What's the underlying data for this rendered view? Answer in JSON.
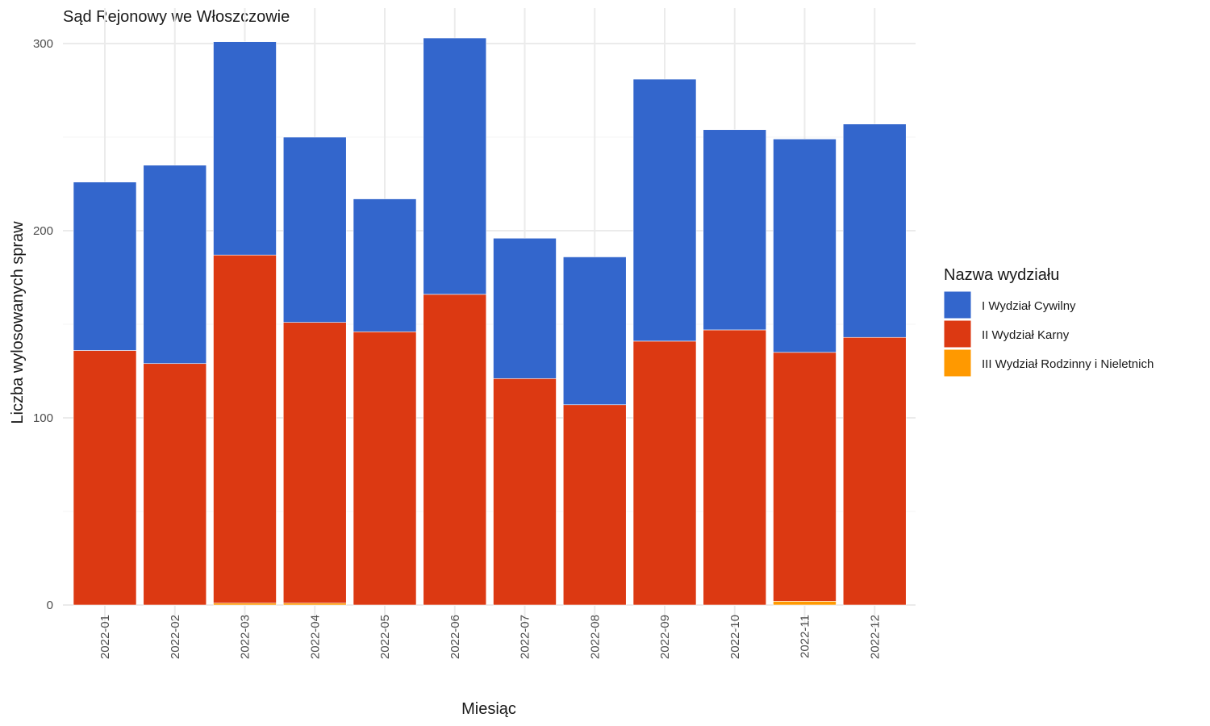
{
  "chart_data": {
    "type": "bar",
    "stacked": true,
    "title": "Sąd Rejonowy we Włoszczowie",
    "xlabel": "Miesiąc",
    "ylabel": "Liczba wylosowanych spraw",
    "ylim": [
      0,
      300
    ],
    "yticks": [
      0,
      100,
      200,
      300
    ],
    "grid": true,
    "legend_position": "right",
    "legend_title": "Nazwa wydziału",
    "categories": [
      "2022-01",
      "2022-02",
      "2022-03",
      "2022-04",
      "2022-05",
      "2022-06",
      "2022-07",
      "2022-08",
      "2022-09",
      "2022-10",
      "2022-11",
      "2022-12"
    ],
    "series": [
      {
        "name": "I Wydział Cywilny",
        "color": "#3366CC",
        "values": [
          90,
          106,
          114,
          99,
          71,
          137,
          75,
          79,
          140,
          107,
          114,
          114
        ]
      },
      {
        "name": "II Wydział Karny",
        "color": "#DC3912",
        "values": [
          136,
          129,
          186,
          150,
          146,
          166,
          121,
          107,
          141,
          147,
          133,
          143
        ]
      },
      {
        "name": "III Wydział Rodzinny i Nieletnich",
        "color": "#FF9900",
        "values": [
          0,
          0,
          1,
          1,
          0,
          0,
          0,
          0,
          0,
          0,
          2,
          0
        ]
      }
    ]
  }
}
